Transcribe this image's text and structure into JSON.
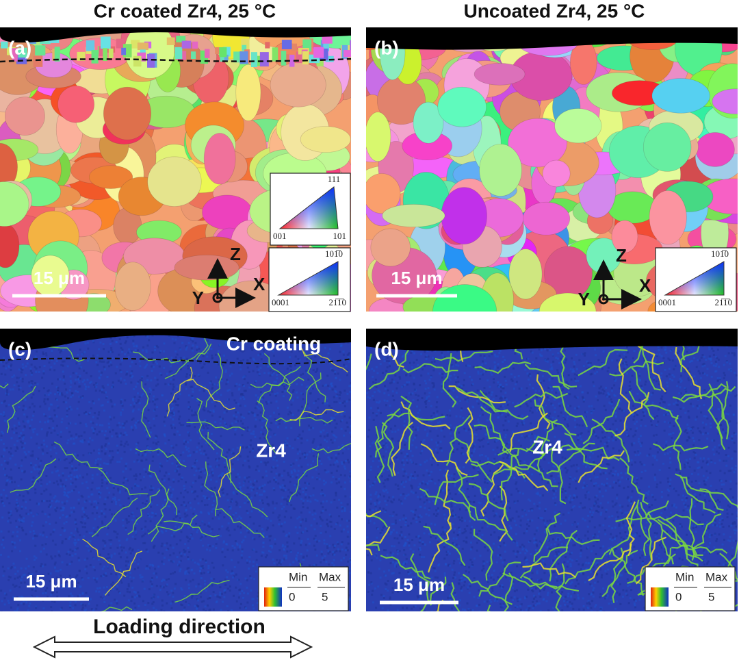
{
  "columns": [
    "Cr coated Zr4, 25 °C",
    "Uncoated Zr4, 25 °C"
  ],
  "panels": [
    {
      "label": "(a)",
      "scale_bar": "15 μm",
      "axes": {
        "z": "Z",
        "x": "X",
        "y": "Y"
      },
      "legend_cubic": {
        "top": "111",
        "left": "001",
        "right": "101"
      },
      "legend_hex": {
        "top": "101̅0",
        "left": "0001",
        "right": "21̅1̅0"
      }
    },
    {
      "label": "(b)",
      "scale_bar": "15 μm",
      "axes": {
        "z": "Z",
        "x": "X",
        "y": "Y"
      },
      "legend_hex": {
        "top": "101̅0",
        "left": "0001",
        "right": "21̅1̅0"
      }
    },
    {
      "label": "(c)",
      "scale_bar": "15 μm",
      "annotations": [
        "Cr coating",
        "Zr4"
      ],
      "legend": {
        "min": "Min",
        "max": "Max",
        "low": "0",
        "high": "5"
      }
    },
    {
      "label": "(d)",
      "scale_bar": "15 μm",
      "annotations": [
        "Zr4"
      ],
      "legend": {
        "min": "Min",
        "max": "Max",
        "low": "0",
        "high": "5"
      }
    }
  ],
  "footer": {
    "arrow_label": "Loading direction"
  }
}
